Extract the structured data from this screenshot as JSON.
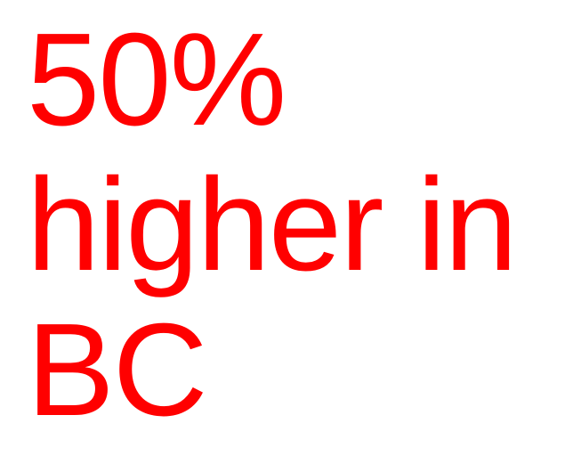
{
  "headline": {
    "line1": "50%",
    "line2": "higher in",
    "line3": "BC"
  },
  "colors": {
    "text": "#ff0000",
    "background": "#ffffff"
  }
}
